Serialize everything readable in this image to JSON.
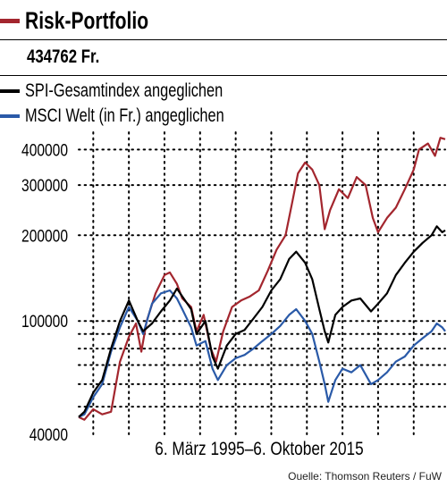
{
  "title": "Risk-Portfolio",
  "value_label": "434762 Fr.",
  "legend": [
    {
      "label": "SPI-Gesamtindex angeglichen",
      "color": "#000000"
    },
    {
      "label": "MSCI Welt (in Fr.) angeglichen",
      "color": "#2a5aa8"
    }
  ],
  "date_range": "6. März 1995–6. Oktober 2015",
  "source": "Ouelle: Thomson Reuters / FuW",
  "colors": {
    "portfolio": "#a3262e",
    "spi": "#000000",
    "msci": "#2a5aa8"
  },
  "chart_data": {
    "type": "line",
    "yscale": "log",
    "ylim": [
      40000,
      460000
    ],
    "xlim": [
      1995.18,
      2015.77
    ],
    "yticks": [
      40000,
      100000,
      200000,
      300000,
      400000
    ],
    "ytick_labels": [
      "40000",
      "100000",
      "200000",
      "300000",
      "400000"
    ],
    "grid": true,
    "series": [
      {
        "key": "portfolio",
        "x": [
          1995.18,
          1995.5,
          1996.0,
          1996.5,
          1997.0,
          1997.5,
          1998.0,
          1998.4,
          1998.7,
          1999.0,
          1999.5,
          2000.0,
          2000.3,
          2000.7,
          2001.0,
          2001.5,
          2001.8,
          2002.2,
          2002.6,
          2002.9,
          2003.3,
          2003.8,
          2004.3,
          2004.8,
          2005.3,
          2005.8,
          2006.3,
          2006.8,
          2007.2,
          2007.5,
          2007.9,
          2008.3,
          2008.7,
          2009.0,
          2009.3,
          2009.8,
          2010.3,
          2010.8,
          2011.3,
          2011.7,
          2012.0,
          2012.5,
          2013.0,
          2013.5,
          2014.0,
          2014.3,
          2014.8,
          2015.2,
          2015.5,
          2015.77
        ],
        "values": [
          46000,
          45000,
          49000,
          47000,
          48000,
          72000,
          88000,
          98000,
          78000,
          100000,
          125000,
          145000,
          148000,
          135000,
          120000,
          112000,
          92000,
          105000,
          80000,
          72000,
          92000,
          112000,
          118000,
          122000,
          128000,
          150000,
          178000,
          200000,
          265000,
          330000,
          360000,
          340000,
          300000,
          210000,
          245000,
          290000,
          270000,
          320000,
          300000,
          230000,
          205000,
          230000,
          250000,
          290000,
          340000,
          400000,
          420000,
          380000,
          440000,
          434762
        ]
      },
      {
        "key": "spi",
        "x": [
          1995.18,
          1995.5,
          1996.0,
          1996.5,
          1997.0,
          1997.5,
          1998.0,
          1998.5,
          1998.8,
          1999.3,
          1999.8,
          2000.3,
          2000.7,
          2001.0,
          2001.5,
          2001.8,
          2002.3,
          2002.7,
          2003.0,
          2003.5,
          2004.0,
          2004.5,
          2005.0,
          2005.5,
          2006.0,
          2006.5,
          2007.0,
          2007.4,
          2007.9,
          2008.3,
          2008.7,
          2009.0,
          2009.2,
          2009.6,
          2010.0,
          2010.5,
          2011.0,
          2011.6,
          2012.0,
          2012.5,
          2013.0,
          2013.5,
          2014.0,
          2014.5,
          2015.0,
          2015.3,
          2015.6,
          2015.77
        ],
        "values": [
          46000,
          48000,
          56000,
          62000,
          80000,
          100000,
          118000,
          100000,
          92000,
          98000,
          108000,
          118000,
          130000,
          122000,
          110000,
          90000,
          100000,
          75000,
          68000,
          82000,
          90000,
          93000,
          102000,
          112000,
          128000,
          140000,
          165000,
          175000,
          160000,
          140000,
          110000,
          92000,
          84000,
          105000,
          112000,
          118000,
          120000,
          108000,
          115000,
          125000,
          145000,
          160000,
          175000,
          188000,
          200000,
          215000,
          205000,
          208000
        ]
      },
      {
        "key": "msci",
        "x": [
          1995.18,
          1995.5,
          1996.0,
          1996.5,
          1997.0,
          1997.5,
          1998.0,
          1998.5,
          1998.8,
          1999.3,
          1999.8,
          2000.3,
          2000.7,
          2001.0,
          2001.5,
          2001.8,
          2002.3,
          2002.7,
          2003.0,
          2003.5,
          2004.0,
          2004.5,
          2005.0,
          2005.5,
          2006.0,
          2006.5,
          2007.0,
          2007.4,
          2007.9,
          2008.3,
          2008.7,
          2009.0,
          2009.2,
          2009.6,
          2010.0,
          2010.5,
          2011.0,
          2011.6,
          2012.0,
          2012.5,
          2013.0,
          2013.5,
          2014.0,
          2014.5,
          2015.0,
          2015.3,
          2015.6,
          2015.77
        ],
        "values": [
          46000,
          47000,
          54000,
          60000,
          78000,
          95000,
          112000,
          100000,
          90000,
          115000,
          125000,
          128000,
          120000,
          110000,
          95000,
          82000,
          85000,
          68000,
          62000,
          70000,
          74000,
          76000,
          80000,
          85000,
          90000,
          96000,
          105000,
          110000,
          100000,
          90000,
          72000,
          60000,
          52000,
          62000,
          68000,
          66000,
          70000,
          60000,
          62000,
          66000,
          72000,
          75000,
          82000,
          87000,
          92000,
          98000,
          95000,
          92000
        ]
      }
    ]
  }
}
